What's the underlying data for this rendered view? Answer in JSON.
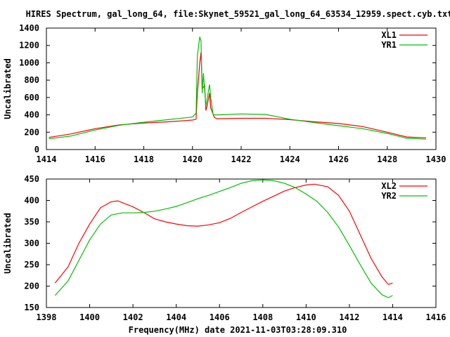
{
  "chart_data": [
    {
      "type": "line",
      "title": "HIRES Spectrum, gal_long_64, file:Skynet_59521_gal_long_64_63534_12959.spect.cyb.txt",
      "xlabel": "",
      "ylabel": "Uncalibrated",
      "xlim": [
        1414,
        1430
      ],
      "ylim": [
        0,
        1400
      ],
      "xticks": [
        1414,
        1416,
        1418,
        1420,
        1422,
        1424,
        1426,
        1428,
        1430
      ],
      "yticks": [
        0,
        200,
        400,
        600,
        800,
        1000,
        1200,
        1400
      ],
      "legend": "top-right",
      "series": [
        {
          "name": "XL1",
          "color": "#ff0000",
          "x": [
            1414.1,
            1415,
            1416,
            1417,
            1418,
            1419,
            1420,
            1420.15,
            1420.2,
            1420.3,
            1420.35,
            1420.4,
            1420.5,
            1420.55,
            1420.6,
            1420.7,
            1420.75,
            1420.9,
            1421,
            1422,
            1423,
            1424,
            1425,
            1426,
            1427,
            1428,
            1428.8,
            1429.6
          ],
          "y": [
            140,
            180,
            240,
            285,
            305,
            320,
            340,
            350,
            650,
            1000,
            1120,
            700,
            740,
            450,
            500,
            650,
            480,
            370,
            355,
            360,
            360,
            345,
            320,
            300,
            265,
            200,
            145,
            135
          ]
        },
        {
          "name": "YR1",
          "color": "#00c000",
          "x": [
            1414.1,
            1415,
            1416,
            1417,
            1418,
            1419,
            1420,
            1420.15,
            1420.2,
            1420.3,
            1420.35,
            1420.4,
            1420.45,
            1420.55,
            1420.6,
            1420.7,
            1420.75,
            1420.85,
            1421,
            1422,
            1423,
            1424,
            1425,
            1426,
            1427,
            1428,
            1428.8,
            1429.6
          ],
          "y": [
            125,
            155,
            225,
            280,
            315,
            345,
            375,
            420,
            1080,
            1300,
            1250,
            650,
            880,
            500,
            580,
            750,
            600,
            400,
            400,
            410,
            405,
            350,
            310,
            275,
            240,
            185,
            130,
            120
          ]
        }
      ]
    },
    {
      "type": "line",
      "title": "",
      "xlabel": "Frequency(MHz) date 2021-11-03T03:28:09.310",
      "ylabel": "Uncalibrated",
      "xlim": [
        1398,
        1416
      ],
      "ylim": [
        150,
        450
      ],
      "xticks": [
        1398,
        1400,
        1402,
        1404,
        1406,
        1408,
        1410,
        1412,
        1414,
        1416
      ],
      "yticks": [
        150,
        200,
        250,
        300,
        350,
        400,
        450
      ],
      "legend": "top-right",
      "series": [
        {
          "name": "XL2",
          "color": "#ff0000",
          "x": [
            1398.4,
            1399,
            1399.5,
            1400,
            1400.5,
            1401,
            1401.3,
            1402,
            1402.5,
            1403,
            1403.5,
            1404,
            1404.5,
            1405,
            1405.5,
            1406,
            1406.5,
            1407,
            1407.5,
            1408,
            1408.5,
            1409,
            1409.5,
            1410,
            1410.4,
            1411,
            1411.5,
            1412,
            1412.5,
            1413,
            1413.5,
            1413.8,
            1414
          ],
          "y": [
            207,
            245,
            300,
            345,
            383,
            397,
            399,
            385,
            372,
            357,
            350,
            345,
            341,
            340,
            343,
            348,
            358,
            372,
            385,
            398,
            410,
            422,
            430,
            436,
            438,
            432,
            412,
            375,
            320,
            265,
            222,
            204,
            207
          ]
        },
        {
          "name": "YR2",
          "color": "#00c000",
          "x": [
            1398.4,
            1399,
            1399.5,
            1400,
            1400.5,
            1401,
            1401.5,
            1402,
            1402.5,
            1403,
            1403.5,
            1404,
            1404.5,
            1405,
            1405.5,
            1406,
            1406.5,
            1407,
            1407.5,
            1408,
            1408.5,
            1409,
            1409.5,
            1410,
            1410.5,
            1411,
            1411.5,
            1412,
            1412.5,
            1413,
            1413.5,
            1413.8,
            1414
          ],
          "y": [
            178,
            212,
            260,
            308,
            345,
            366,
            371,
            371,
            372,
            375,
            380,
            386,
            395,
            404,
            412,
            421,
            430,
            440,
            446,
            448,
            446,
            440,
            430,
            415,
            398,
            372,
            338,
            295,
            250,
            207,
            180,
            173,
            178
          ]
        }
      ]
    }
  ]
}
